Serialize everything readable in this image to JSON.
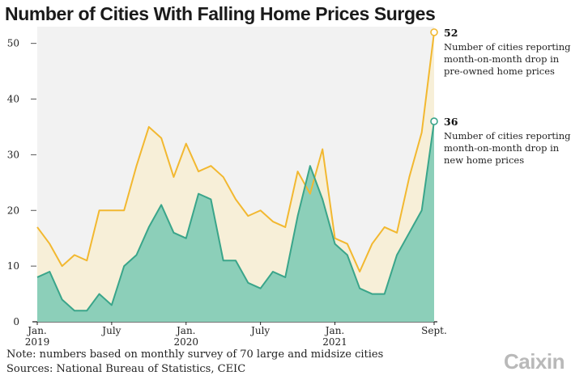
{
  "title": "Number of Cities With Falling Home Prices Surges",
  "notes": {
    "line1": "Note: numbers based on monthly survey of 70 large and midsize cities",
    "line2": "Sources: National Bureau of Statistics, CEIC"
  },
  "logo": "Caixin",
  "colors": {
    "preowned_line": "#f2b830",
    "preowned_fill": "#f7efd8",
    "new_line": "#3aa58a",
    "new_fill": "#8ccfb9",
    "plot_bg": "#f2f2f2"
  },
  "chart_data": {
    "type": "area",
    "title": "Number of Cities With Falling Home Prices Surges",
    "x": [
      "2019-01",
      "2019-02",
      "2019-03",
      "2019-04",
      "2019-05",
      "2019-06",
      "2019-07",
      "2019-08",
      "2019-09",
      "2019-10",
      "2019-11",
      "2019-12",
      "2020-01",
      "2020-02",
      "2020-03",
      "2020-04",
      "2020-05",
      "2020-06",
      "2020-07",
      "2020-08",
      "2020-09",
      "2020-10",
      "2020-11",
      "2020-12",
      "2021-01",
      "2021-02",
      "2021-03",
      "2021-04",
      "2021-05",
      "2021-06",
      "2021-07",
      "2021-08",
      "2021-09"
    ],
    "x_tick_labels": [
      {
        "label": "Jan.",
        "sub": "2019",
        "index": 0
      },
      {
        "label": "July",
        "sub": "",
        "index": 6
      },
      {
        "label": "Jan.",
        "sub": "2020",
        "index": 12
      },
      {
        "label": "July",
        "sub": "",
        "index": 18
      },
      {
        "label": "Jan.",
        "sub": "2021",
        "index": 24
      },
      {
        "label": "Sept.",
        "sub": "",
        "index": 32
      }
    ],
    "y_ticks": [
      0,
      10,
      20,
      30,
      40,
      50
    ],
    "ylim": [
      0,
      53
    ],
    "grid": false,
    "series": [
      {
        "name": "Number of cities reporting month-on-month drop in pre-owned home prices",
        "values": [
          17,
          14,
          10,
          12,
          11,
          20,
          20,
          20,
          28,
          35,
          33,
          26,
          32,
          27,
          28,
          26,
          22,
          19,
          20,
          18,
          17,
          27,
          23,
          31,
          15,
          14,
          9,
          14,
          17,
          16,
          26,
          34,
          52
        ],
        "end_label": "52",
        "label_lines": [
          "Number of cities reporting",
          "month-on-month drop in",
          "pre-owned home prices"
        ]
      },
      {
        "name": "Number of cities reporting month-on-month drop in new home prices",
        "values": [
          8,
          9,
          4,
          2,
          2,
          5,
          3,
          10,
          12,
          17,
          21,
          16,
          15,
          23,
          22,
          11,
          11,
          7,
          6,
          9,
          8,
          19,
          28,
          22,
          14,
          12,
          6,
          5,
          5,
          12,
          16,
          20,
          36
        ],
        "end_label": "36",
        "label_lines": [
          "Number of cities reporting",
          "month-on-month drop in",
          "new home prices"
        ]
      }
    ]
  }
}
